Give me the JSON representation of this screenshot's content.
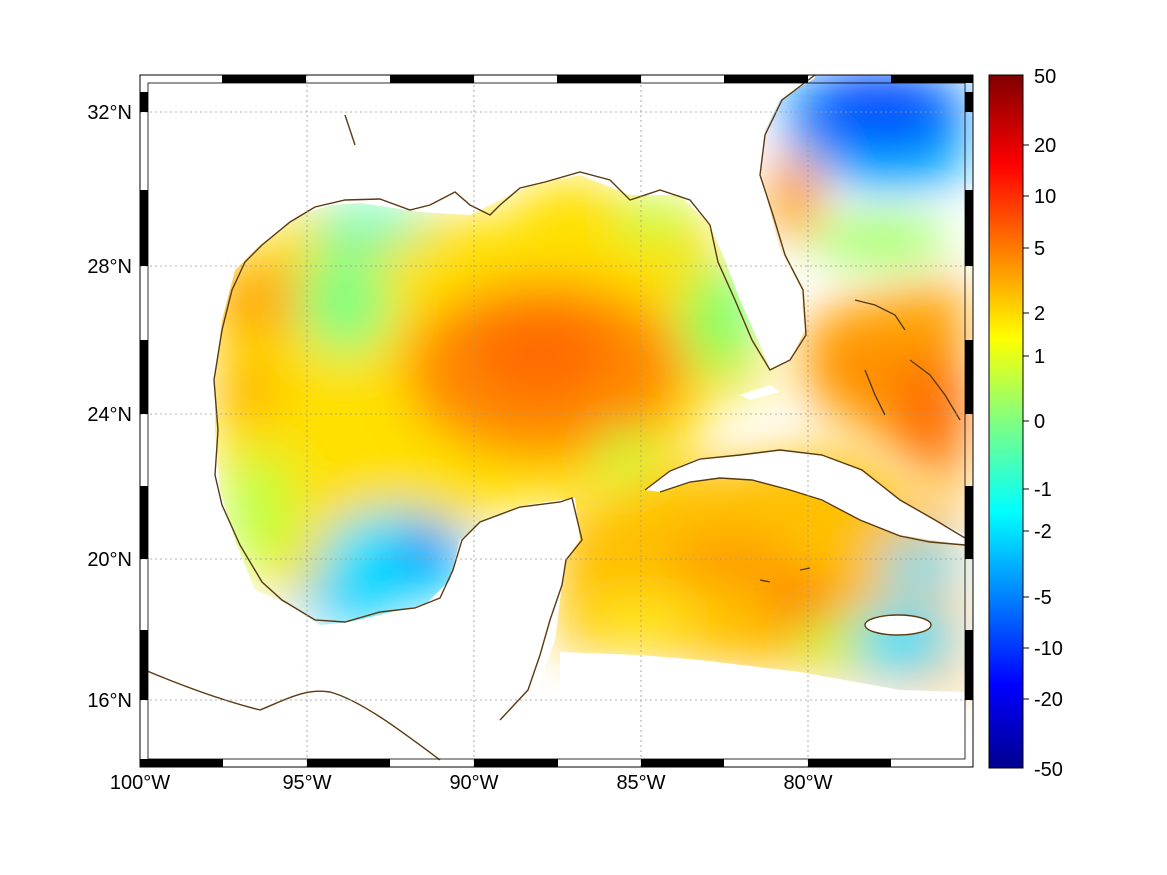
{
  "map": {
    "kind": "gridded field map",
    "region": "Gulf of Mexico and Caribbean",
    "projection": "equirectangular lon/lat",
    "frame_style": "black-and-white checkered border",
    "grid": "dotted lat/lon gridlines",
    "coastline_color": "#5a3a10",
    "extent": {
      "lon_min": -100,
      "lon_max": -75,
      "lat_min": 14.3,
      "lat_max": 33
    }
  },
  "axes": {
    "longitude_ticks": [
      "100°W",
      "95°W",
      "90°W",
      "85°W",
      "80°W"
    ],
    "latitude_ticks": [
      "32°N",
      "28°N",
      "24°N",
      "20°N",
      "16°N"
    ]
  },
  "colorbar": {
    "colormap": "jet",
    "scale": "nonlinear (symmetric)",
    "labels": [
      "50",
      "20",
      "10",
      "5",
      "2",
      "1",
      "0",
      "-1",
      "-2",
      "-5",
      "-10",
      "-20",
      "-50"
    ],
    "min": -50,
    "max": 50
  }
}
